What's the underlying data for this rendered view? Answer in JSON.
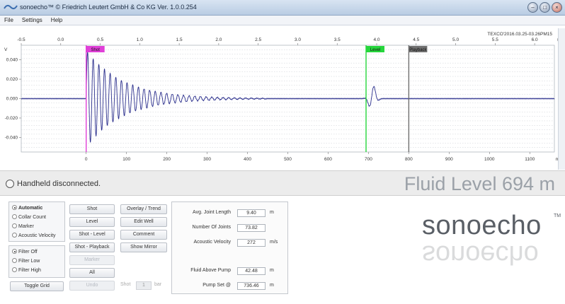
{
  "window": {
    "title": "sonoecho™  © Friedrich Leutert GmbH & Co KG    Ver. 1.0.0.254",
    "buttons": [
      "–",
      "□",
      "×"
    ]
  },
  "menu": [
    "File",
    "Settings",
    "Help"
  ],
  "chart_data": {
    "type": "line",
    "title": "",
    "timestamp": "TEXCO'2016.03.25-03.26PM15",
    "xlabel_top": "s",
    "xlabel_bottom": "m",
    "ylabel": "V",
    "top_axis": {
      "min": -0.5,
      "max": 6.25,
      "ticks": [
        -0.5,
        0.0,
        0.5,
        1.0,
        1.5,
        2.0,
        2.5,
        3.0,
        3.5,
        4.0,
        4.5,
        5.0,
        5.5,
        6.0
      ]
    },
    "bottom_axis": {
      "min": -161,
      "max": 1161,
      "ticks": [
        0,
        100,
        200,
        300,
        400,
        500,
        600,
        700,
        800,
        900,
        1000,
        1100
      ]
    },
    "ylim": [
      -0.055,
      0.055
    ],
    "y_ticks": [
      0.04,
      0.02,
      0.0,
      -0.02,
      -0.04
    ],
    "grid": true,
    "markers": [
      {
        "label": "Shot",
        "depth_m": 0,
        "color": "#e040d8"
      },
      {
        "label": "Level",
        "depth_m": 694,
        "color": "#26d63c"
      },
      {
        "label": "Playback",
        "depth_m": 800,
        "color": "#707070"
      }
    ],
    "series": [
      {
        "signal": "echo",
        "color": "#2a2e8c",
        "decay_envelope_start_V": 0.05,
        "decay_end_m": 450,
        "echo_position_m": 710,
        "echo_amplitude_V": 0.014
      }
    ]
  },
  "status": {
    "handheld": "Handheld disconnected.",
    "fluid_level": "Fluid Level 694 m"
  },
  "mode_group": [
    {
      "label": "Automatic",
      "selected": true
    },
    {
      "label": "Collar Count",
      "selected": false
    },
    {
      "label": "Marker",
      "selected": false
    },
    {
      "label": "Acoustic Velocity",
      "selected": false
    }
  ],
  "filter_group": [
    {
      "label": "Filter Off",
      "selected": true
    },
    {
      "label": "Filter Low",
      "selected": false
    },
    {
      "label": "Filter High",
      "selected": false
    }
  ],
  "buttons": {
    "toggle_grid": "Toggle Grid",
    "shot": "Shot",
    "level": "Level",
    "shot_level": "Shot - Level",
    "shot_playback": "Shot - Playback",
    "marker": "Marker",
    "all": "All",
    "undo": "Undo",
    "overlay_trend": "Overlay / Trend",
    "edit_well": "Edit Well",
    "comment": "Comment",
    "show_mirror": "Show Mirror"
  },
  "shot_control": {
    "label": "Shot",
    "value": "1",
    "unit": "bar"
  },
  "params": [
    {
      "label": "Avg. Joint Length",
      "value": "9.40",
      "unit": "m"
    },
    {
      "label": "Number Of Joints",
      "value": "73.82",
      "unit": ""
    },
    {
      "label": "Acoustic Velocity",
      "value": "272",
      "unit": "m/s"
    },
    {
      "label": "Fluid Above Pump",
      "value": "42.48",
      "unit": "m"
    },
    {
      "label": "Pump Set @",
      "value": "736.46",
      "unit": "m"
    }
  ],
  "brand": {
    "name": "sonoecho",
    "tm": "TM"
  }
}
